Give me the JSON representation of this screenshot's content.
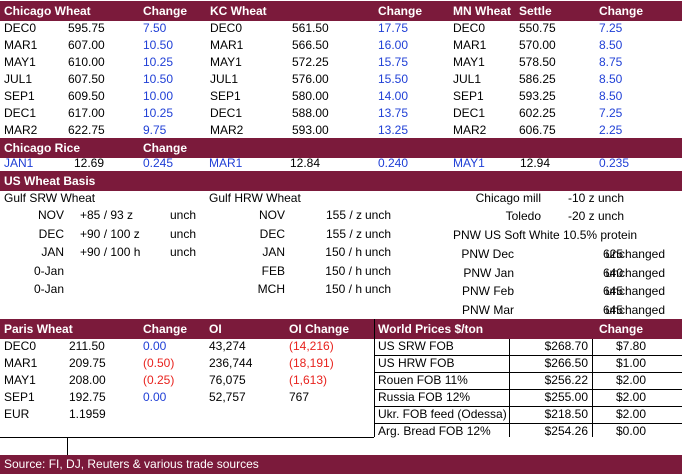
{
  "futures": {
    "headers": {
      "chicago": "Chicago Wheat",
      "kc": "KC Wheat",
      "mn": "MN Wheat",
      "settle": "Settle",
      "change": "Change"
    },
    "rows": [
      {
        "c_m": "DEC0",
        "c_p": "595.75",
        "c_c": "7.50",
        "k_m": "DEC0",
        "k_p": "561.50",
        "k_c": "17.75",
        "m_m": "DEC0",
        "m_p": "550.75",
        "m_c": "7.25"
      },
      {
        "c_m": "MAR1",
        "c_p": "607.00",
        "c_c": "10.50",
        "k_m": "MAR1",
        "k_p": "566.50",
        "k_c": "16.00",
        "m_m": "MAR1",
        "m_p": "570.00",
        "m_c": "8.50"
      },
      {
        "c_m": "MAY1",
        "c_p": "610.00",
        "c_c": "10.25",
        "k_m": "MAY1",
        "k_p": "572.25",
        "k_c": "15.75",
        "m_m": "MAY1",
        "m_p": "578.50",
        "m_c": "8.75"
      },
      {
        "c_m": "JUL1",
        "c_p": "607.50",
        "c_c": "10.50",
        "k_m": "JUL1",
        "k_p": "576.00",
        "k_c": "15.50",
        "m_m": "JUL1",
        "m_p": "586.25",
        "m_c": "8.50"
      },
      {
        "c_m": "SEP1",
        "c_p": "609.50",
        "c_c": "10.00",
        "k_m": "SEP1",
        "k_p": "580.00",
        "k_c": "14.00",
        "m_m": "SEP1",
        "m_p": "593.25",
        "m_c": "8.50"
      },
      {
        "c_m": "DEC1",
        "c_p": "617.00",
        "c_c": "10.25",
        "k_m": "DEC1",
        "k_p": "588.00",
        "k_c": "13.75",
        "m_m": "DEC1",
        "m_p": "602.25",
        "m_c": "7.25"
      },
      {
        "c_m": "MAR2",
        "c_p": "622.75",
        "c_c": "9.75",
        "k_m": "MAR2",
        "k_p": "593.00",
        "k_c": "13.25",
        "m_m": "MAR2",
        "m_p": "606.75",
        "m_c": "2.25"
      }
    ]
  },
  "rice": {
    "header": "Chicago Rice",
    "change": "Change",
    "cells": [
      {
        "m": "JAN1",
        "p": "12.69",
        "c": "0.245"
      },
      {
        "m": "MAR1",
        "p": "12.84",
        "c": "0.240"
      },
      {
        "m": "MAY1",
        "p": "12.94",
        "c": "0.235"
      }
    ]
  },
  "basis": {
    "header": "US Wheat Basis",
    "srw_title": "Gulf SRW Wheat",
    "hrw_title": "Gulf HRW Wheat",
    "srw": [
      {
        "m": "NOV",
        "v": "+85 / 93 z",
        "c": "unch"
      },
      {
        "m": "DEC",
        "v": "+90 / 100 z",
        "c": "unch"
      },
      {
        "m": "JAN",
        "v": "+90 / 100 h",
        "c": "unch"
      },
      {
        "m": "0-Jan",
        "v": "",
        "c": ""
      },
      {
        "m": "0-Jan",
        "v": "",
        "c": ""
      }
    ],
    "hrw": [
      {
        "m": "NOV",
        "v": "155 / z",
        "c": "unch"
      },
      {
        "m": "DEC",
        "v": "155 / z",
        "c": "unch"
      },
      {
        "m": "JAN",
        "v": "150 / h",
        "c": "unch"
      },
      {
        "m": "FEB",
        "v": "150 / h",
        "c": "unch"
      },
      {
        "m": "MCH",
        "v": "150 / h",
        "c": "unch"
      }
    ],
    "mill": [
      {
        "l": "Chicago mill",
        "v": "-10 z unch"
      },
      {
        "l": "Toledo",
        "v": "-20 z unch"
      }
    ],
    "pnw_title": "PNW US Soft White 10.5% protein",
    "pnw": [
      {
        "l": "PNW Dec",
        "v": "625",
        "c": "unchanged"
      },
      {
        "l": "PNW Jan",
        "v": "640",
        "c": "unchanged"
      },
      {
        "l": "PNW Feb",
        "v": "645",
        "c": "unchanged"
      },
      {
        "l": "PNW Mar",
        "v": "645",
        "c": "unchanged"
      }
    ]
  },
  "paris": {
    "header": "Paris Wheat",
    "change": "Change",
    "oi": "OI",
    "oi_change": "OI Change",
    "rows": [
      {
        "m": "DEC0",
        "p": "211.50",
        "c": "0.00",
        "oi": "43,274",
        "oc": "(14,216)"
      },
      {
        "m": "MAR1",
        "p": "209.75",
        "c": "(0.50)",
        "oi": "236,744",
        "oc": "(18,191)"
      },
      {
        "m": "MAY1",
        "p": "208.00",
        "c": "(0.25)",
        "oi": "76,075",
        "oc": "(1,613)"
      },
      {
        "m": "SEP1",
        "p": "192.75",
        "c": "0.00",
        "oi": "52,757",
        "oc": "767"
      }
    ],
    "eur_label": "EUR",
    "eur_value": "1.1959"
  },
  "world": {
    "header": "World Prices $/ton",
    "change": "Change",
    "rows": [
      {
        "l": "US SRW FOB",
        "p": "$268.70",
        "c": "$7.80"
      },
      {
        "l": "US HRW FOB",
        "p": "$266.50",
        "c": "$1.00"
      },
      {
        "l": "Rouen FOB 11%",
        "p": "$256.22",
        "c": "$2.00"
      },
      {
        "l": "Russia FOB 12%",
        "p": "$255.00",
        "c": "$2.00"
      },
      {
        "l": "Ukr. FOB feed (Odessa)",
        "p": "$218.50",
        "c": "$2.00"
      },
      {
        "l": "Arg. Bread FOB 12%",
        "p": "$254.26",
        "c": "$0.00"
      }
    ]
  },
  "footer": "Source: FI, DJ, Reuters & various trade sources",
  "colors": {
    "header_bg": "#7b1a3b",
    "positive": "#1f3fd6",
    "negative": "#e8231e"
  }
}
